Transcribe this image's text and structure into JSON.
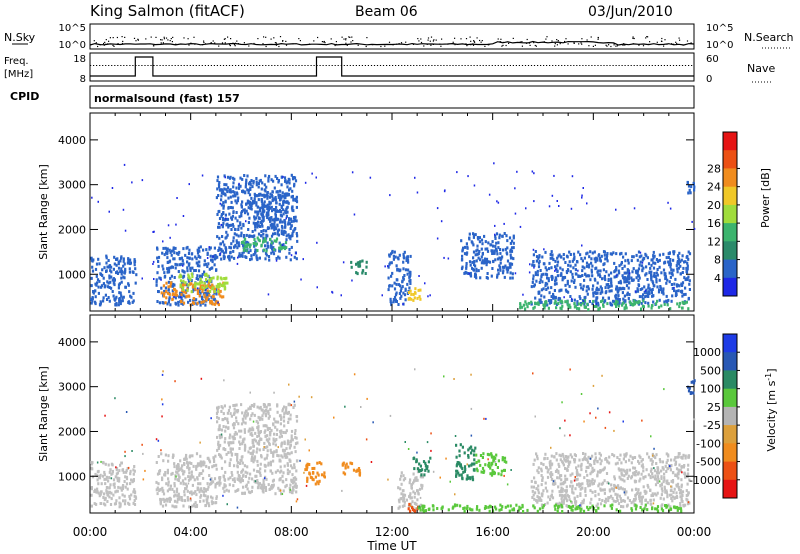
{
  "header": {
    "station": "King Salmon (fitACF)",
    "beam": "Beam 06",
    "date": "03/Jun/2010"
  },
  "top_panels": {
    "nsky_label": "N.Sky",
    "nsearch_label": "N.Search",
    "freq_label_line1": "Freq.",
    "freq_label_line2": "[MHz]",
    "nave_label": "Nave",
    "cpid_label": "CPID",
    "cpid_value": "normalsound (fast) 157",
    "noise_left_ticks": [
      "10^5",
      "10^0"
    ],
    "noise_right_ticks": [
      "10^5",
      "10^0"
    ],
    "freq_ticks": [
      "18",
      "8"
    ],
    "nave_ticks": [
      "60",
      "0"
    ]
  },
  "colors": {
    "power_scale": [
      "#1e28e6",
      "#2a64c8",
      "#2a8a6a",
      "#3cb46e",
      "#a0dc3c",
      "#f0c828",
      "#f08c1e",
      "#ec5014",
      "#e61414"
    ],
    "velocity_scale": [
      "#1e3ce6",
      "#2858b4",
      "#2a8a64",
      "#5ac83c",
      "#b4b4b4",
      "#dca03c",
      "#f08c1e",
      "#ec5014",
      "#e61414"
    ],
    "ground_scatter": "#c0c0c0"
  },
  "chart_data": [
    {
      "type": "heatmap",
      "title": "Power",
      "xlabel": "Time UT",
      "ylabel": "Slant Range [km]",
      "x_range_hours": [
        0,
        24
      ],
      "ylim": [
        180,
        4600
      ],
      "x_tick_labels": [
        "00:00",
        "04:00",
        "08:00",
        "12:00",
        "16:00",
        "20:00",
        "00:00"
      ],
      "y_ticks": [
        1000,
        2000,
        3000,
        4000
      ],
      "colorbar": {
        "label": "Power [dB]",
        "ticks": [
          "4",
          "8",
          "12",
          "16",
          "20",
          "24",
          "28"
        ],
        "levels": [
          0,
          4,
          8,
          12,
          16,
          20,
          24,
          28,
          32
        ]
      },
      "regions": [
        {
          "t0": 0.0,
          "t1": 1.8,
          "r0": 300,
          "r1": 1400,
          "value": 5
        },
        {
          "t0": 2.6,
          "t1": 5.0,
          "r0": 300,
          "r1": 1600,
          "value": 6
        },
        {
          "t0": 2.8,
          "t1": 5.3,
          "r0": 300,
          "r1": 800,
          "value": 27
        },
        {
          "t0": 3.5,
          "t1": 5.5,
          "r0": 600,
          "r1": 1000,
          "value": 18
        },
        {
          "t0": 5.0,
          "t1": 8.2,
          "r0": 1300,
          "r1": 3200,
          "value": 5
        },
        {
          "t0": 6.0,
          "t1": 7.8,
          "r0": 1500,
          "r1": 1800,
          "value": 14
        },
        {
          "t0": 6.5,
          "t1": 8.0,
          "r0": 2000,
          "r1": 2800,
          "value": 6
        },
        {
          "t0": 10.3,
          "t1": 11.0,
          "r0": 1000,
          "r1": 1300,
          "value": 9
        },
        {
          "t0": 11.8,
          "t1": 12.7,
          "r0": 300,
          "r1": 1500,
          "value": 6
        },
        {
          "t0": 12.6,
          "t1": 13.1,
          "r0": 300,
          "r1": 700,
          "value": 22
        },
        {
          "t0": 14.7,
          "t1": 16.8,
          "r0": 900,
          "r1": 1900,
          "value": 7
        },
        {
          "t0": 17.5,
          "t1": 23.8,
          "r0": 300,
          "r1": 1500,
          "value": 5
        },
        {
          "t0": 17.0,
          "t1": 23.8,
          "r0": 200,
          "r1": 400,
          "value": 12
        },
        {
          "t0": 23.7,
          "t1": 24.0,
          "r0": 2800,
          "r1": 3200,
          "value": 6
        }
      ]
    },
    {
      "type": "heatmap",
      "title": "Velocity",
      "xlabel": "Time UT",
      "ylabel": "Slant Range [km]",
      "x_range_hours": [
        0,
        24
      ],
      "ylim": [
        180,
        4600
      ],
      "x_tick_labels": [
        "00:00",
        "04:00",
        "08:00",
        "12:00",
        "16:00",
        "20:00",
        "00:00"
      ],
      "y_ticks": [
        1000,
        2000,
        3000,
        4000
      ],
      "colorbar": {
        "label": "Velocity [m s^-1]",
        "ticks": [
          "1000",
          "500",
          "100",
          "25",
          "-25",
          "-100",
          "-500",
          "-1000"
        ],
        "levels": [
          1500,
          1000,
          500,
          100,
          25,
          -25,
          -100,
          -500,
          -1000,
          -1500
        ]
      },
      "regions": [
        {
          "t0": 0.0,
          "t1": 1.8,
          "r0": 300,
          "r1": 1300,
          "value": 0,
          "ground_scatter": true
        },
        {
          "t0": 2.6,
          "t1": 5.0,
          "r0": 300,
          "r1": 1500,
          "value": 0,
          "ground_scatter": true
        },
        {
          "t0": 5.0,
          "t1": 8.2,
          "r0": 600,
          "r1": 2600,
          "value": 0,
          "ground_scatter": true
        },
        {
          "t0": 8.5,
          "t1": 9.3,
          "r0": 800,
          "r1": 1300,
          "value": -300
        },
        {
          "t0": 10.0,
          "t1": 10.8,
          "r0": 1000,
          "r1": 1300,
          "value": -300
        },
        {
          "t0": 12.2,
          "t1": 13.2,
          "r0": 250,
          "r1": 1100,
          "value": 0,
          "ground_scatter": true
        },
        {
          "t0": 12.6,
          "t1": 13.1,
          "r0": 200,
          "r1": 400,
          "value": -500
        },
        {
          "t0": 12.8,
          "t1": 13.5,
          "r0": 1000,
          "r1": 1400,
          "value": 300
        },
        {
          "t0": 14.5,
          "t1": 15.3,
          "r0": 900,
          "r1": 1700,
          "value": 300
        },
        {
          "t0": 15.3,
          "t1": 16.5,
          "r0": 1000,
          "r1": 1500,
          "value": 80
        },
        {
          "t0": 17.5,
          "t1": 23.8,
          "r0": 300,
          "r1": 1500,
          "value": 0,
          "ground_scatter": true
        },
        {
          "t0": 13.0,
          "t1": 23.8,
          "r0": 200,
          "r1": 350,
          "value": 80
        },
        {
          "t0": 23.7,
          "t1": 24.0,
          "r0": 2800,
          "r1": 3200,
          "value": 700
        }
      ]
    }
  ]
}
